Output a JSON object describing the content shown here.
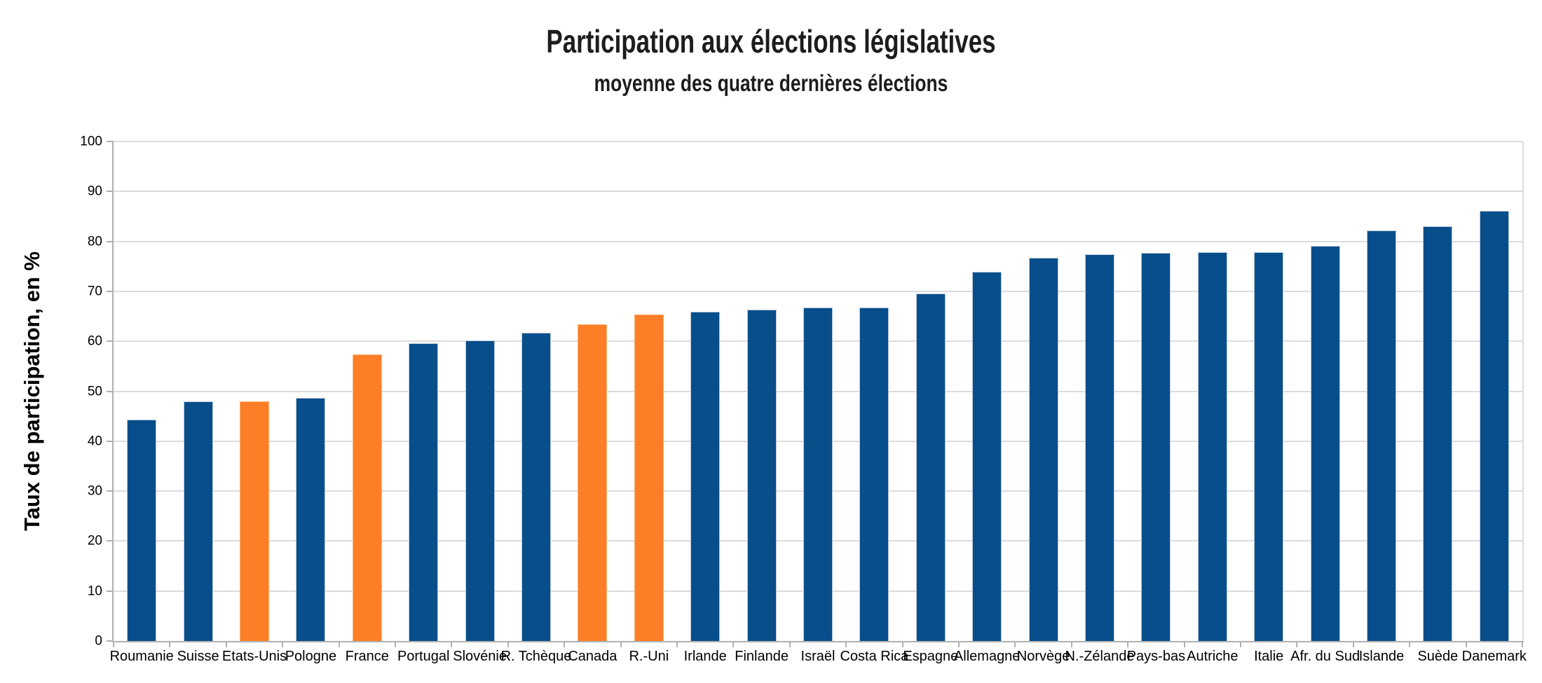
{
  "chart_data": {
    "type": "bar",
    "title": "Participation aux élections législatives",
    "subtitle": "moyenne des quatre dernières élections",
    "xlabel": "",
    "ylabel": "Taux de participation, en %",
    "ylim": [
      0,
      100
    ],
    "ytick_step": 10,
    "yticks": [
      0,
      10,
      20,
      30,
      40,
      50,
      60,
      70,
      80,
      90,
      100
    ],
    "grid": true,
    "legend": "none",
    "categories": [
      "Roumanie",
      "Suisse",
      "Etats-Unis",
      "Pologne",
      "France",
      "Portugal",
      "Slovénie",
      "R. Tchèque",
      "Canada",
      "R.-Uni",
      "Irlande",
      "Finlande",
      "Israël",
      "Costa Rica",
      "Espagne",
      "Allemagne",
      "Norvège",
      "N.-Zélande",
      "Pays-bas",
      "Autriche",
      "Italie",
      "Afr. du Sud",
      "Islande",
      "Suède",
      "Danemark"
    ],
    "values": [
      44.3,
      47.9,
      47.9,
      48.6,
      57.3,
      59.6,
      60.2,
      61.7,
      63.4,
      65.3,
      65.9,
      66.3,
      66.8,
      66.8,
      69.6,
      73.9,
      76.7,
      77.4,
      77.7,
      77.9,
      77.9,
      79.1,
      82.2,
      83.0,
      86.1
    ],
    "highlighted_categories": [
      "Etats-Unis",
      "France",
      "Canada",
      "R.-Uni"
    ],
    "bar_color": "#074e8b",
    "highlight_color": "#fd7e26",
    "gridline_color": "#dcdcdc",
    "axis_color": "#b0b0b0"
  }
}
